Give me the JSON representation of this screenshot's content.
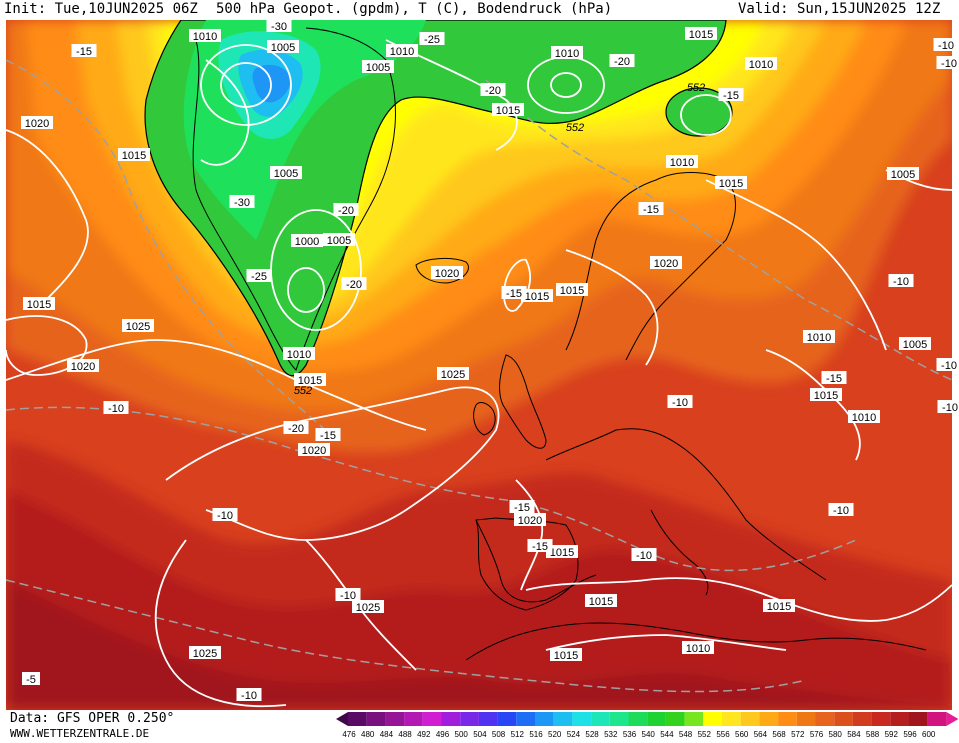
{
  "header": {
    "init": "Init: Tue,10JUN2025 06Z",
    "title": "500 hPa Geopot. (gpdm), T (C), Bodendruck (hPa)",
    "valid": "Valid: Sun,15JUN2025 12Z"
  },
  "footer": {
    "data_source": "Data: GFS OPER 0.250°",
    "website": "WWW.WETTERZENTRALE.DE"
  },
  "legend": {
    "values": [
      "476",
      "480",
      "484",
      "488",
      "492",
      "496",
      "500",
      "504",
      "508",
      "512",
      "516",
      "520",
      "524",
      "528",
      "532",
      "536",
      "540",
      "544",
      "548",
      "552",
      "556",
      "560",
      "564",
      "568",
      "572",
      "576",
      "580",
      "584",
      "588",
      "592",
      "596",
      "600"
    ],
    "colors": [
      "#5a0a64",
      "#78107e",
      "#961496",
      "#b418b4",
      "#d21ed2",
      "#a01edc",
      "#7828e6",
      "#5032f0",
      "#2846f5",
      "#1e6ef5",
      "#1e96f5",
      "#1ebef0",
      "#1ee1e6",
      "#1ee6b9",
      "#1ee68c",
      "#1edc5a",
      "#1ed232",
      "#32d21e",
      "#78e61e",
      "#ffff00",
      "#ffe61e",
      "#ffc81e",
      "#ffaa14",
      "#ff8c14",
      "#f07814",
      "#e6641e",
      "#dc501e",
      "#d23c1e",
      "#c8281e",
      "#b41e1e",
      "#a0141e",
      "#d2147e"
    ]
  },
  "map": {
    "pressure_labels": [
      {
        "text": "1010"
      },
      {
        "text": "1005"
      },
      {
        "text": "1010"
      },
      {
        "text": "1005"
      },
      {
        "text": "1010"
      },
      {
        "text": "1015"
      },
      {
        "text": "1010"
      },
      {
        "text": "1020"
      },
      {
        "text": "1015"
      },
      {
        "text": "1005"
      },
      {
        "text": "1015"
      },
      {
        "text": "1010"
      },
      {
        "text": "1015"
      },
      {
        "text": "1005"
      },
      {
        "text": "1000"
      },
      {
        "text": "1005"
      },
      {
        "text": "1020"
      },
      {
        "text": "1015"
      },
      {
        "text": "1015"
      },
      {
        "text": "1020"
      },
      {
        "text": "1015"
      },
      {
        "text": "1025"
      },
      {
        "text": "1020"
      },
      {
        "text": "1010"
      },
      {
        "text": "1010"
      },
      {
        "text": "1005"
      },
      {
        "text": "1015"
      },
      {
        "text": "1025"
      },
      {
        "text": "1015"
      },
      {
        "text": "1020"
      },
      {
        "text": "1010"
      },
      {
        "text": "1020"
      },
      {
        "text": "1015"
      },
      {
        "text": "1025"
      },
      {
        "text": "1015"
      },
      {
        "text": "1015"
      },
      {
        "text": "1025"
      },
      {
        "text": "1015"
      },
      {
        "text": "1010"
      }
    ],
    "temp_labels": [
      {
        "text": "-15"
      },
      {
        "text": "-30"
      },
      {
        "text": "-25"
      },
      {
        "text": "-20"
      },
      {
        "text": "-20"
      },
      {
        "text": "-15"
      },
      {
        "text": "-10"
      },
      {
        "text": "-30"
      },
      {
        "text": "-20"
      },
      {
        "text": "-25"
      },
      {
        "text": "-20"
      },
      {
        "text": "-15"
      },
      {
        "text": "-15"
      },
      {
        "text": "-10"
      },
      {
        "text": "-10"
      },
      {
        "text": "-20"
      },
      {
        "text": "-15"
      },
      {
        "text": "-10"
      },
      {
        "text": "-15"
      },
      {
        "text": "-15"
      },
      {
        "text": "-10"
      },
      {
        "text": "-15"
      },
      {
        "text": "-10"
      },
      {
        "text": "-10"
      },
      {
        "text": "-10"
      },
      {
        "text": "-10"
      },
      {
        "text": "-5"
      },
      {
        "text": "-10"
      },
      {
        "text": "-10"
      },
      {
        "text": "-10"
      }
    ],
    "geopot_labels": [
      {
        "text": "552"
      },
      {
        "text": "552"
      },
      {
        "text": "552"
      }
    ]
  }
}
